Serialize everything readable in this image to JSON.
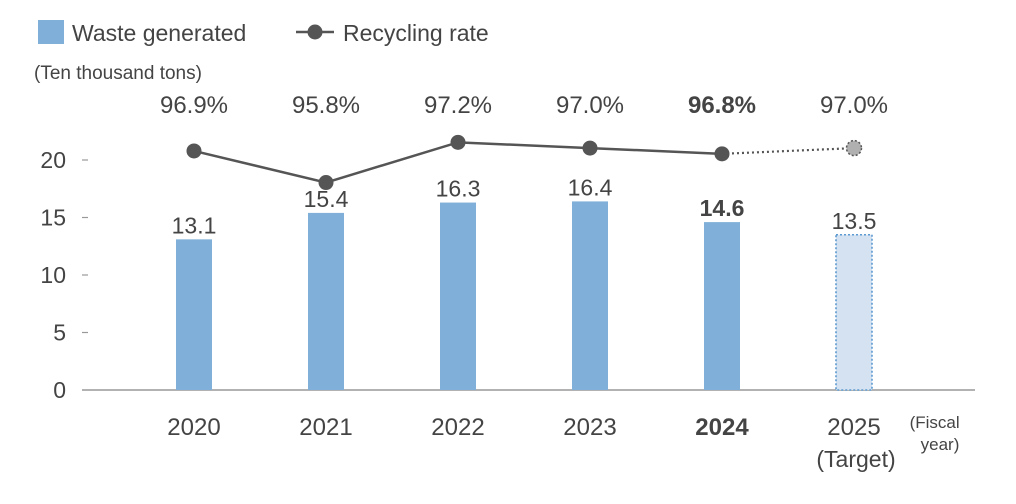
{
  "chart_data": {
    "type": "bar",
    "categories": [
      "2020",
      "2021",
      "2022",
      "2023",
      "2024",
      "2025"
    ],
    "category_sublabels": [
      "",
      "",
      "",
      "",
      "",
      "(Target)"
    ],
    "x_unit_label": [
      "(Fiscal",
      "year)"
    ],
    "y_unit_label": "(Ten thousand tons)",
    "ylim": [
      0,
      20
    ],
    "yticks": [
      "0",
      "5",
      "10",
      "15",
      "20"
    ],
    "highlight_category": "2024",
    "target_category": "2025",
    "legend_position": "top-left",
    "series": [
      {
        "name": "Waste generated",
        "type": "bar",
        "values": [
          13.1,
          15.4,
          16.3,
          16.4,
          14.6,
          13.5
        ],
        "labels": [
          "13.1",
          "15.4",
          "16.3",
          "16.4",
          "14.6",
          "13.5"
        ]
      },
      {
        "name": "Recycling rate",
        "type": "line",
        "values": [
          96.9,
          95.8,
          97.2,
          97.0,
          96.8,
          97.0
        ],
        "labels": [
          "96.9%",
          "95.8%",
          "97.2%",
          "97.0%",
          "96.8%",
          "97.0%"
        ]
      }
    ],
    "colors": {
      "bar": "#80b0d9",
      "bar_target_fill": "#d4e2f1",
      "bar_target_border": "#5d9ad1",
      "line": "#555555",
      "marker": "#555555",
      "marker_target": "#b0b0b0",
      "axis": "#999999",
      "text": "#444444"
    }
  }
}
